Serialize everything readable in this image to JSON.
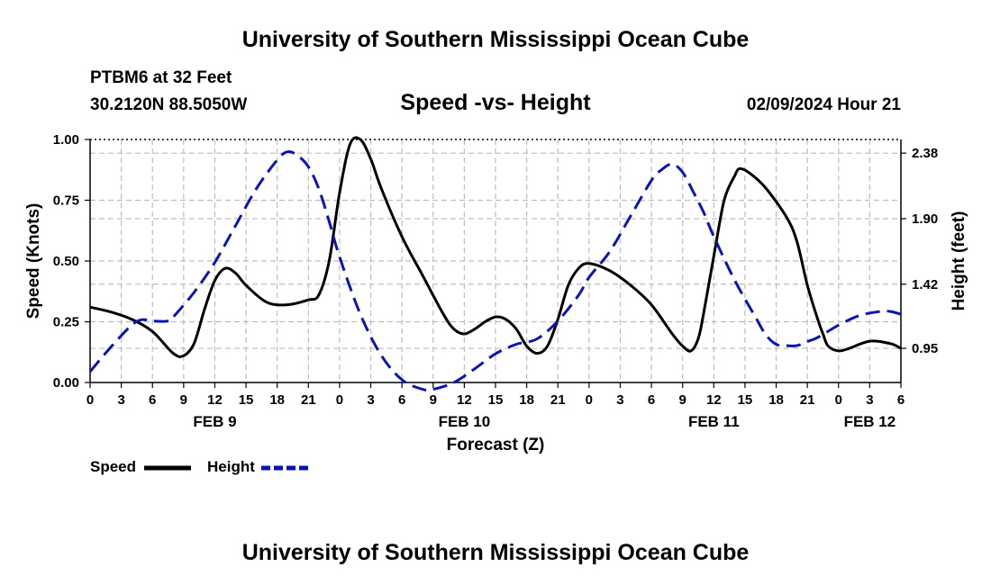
{
  "header": {
    "title": "University of Southern Mississippi Ocean Cube",
    "station": "PTBM6 at 32 Feet",
    "coords": "30.2120N  88.5050W",
    "subtitle": "Speed -vs- Height",
    "datetime": "02/09/2024 Hour 21"
  },
  "footer": {
    "title": "University of Southern Mississippi Ocean Cube"
  },
  "chart_data": {
    "type": "line",
    "xlabel": "Forecast (Z)",
    "ylabel_left": "Speed (Knots)",
    "ylabel_right": "Height (feet)",
    "x_range_hours": [
      0,
      78
    ],
    "x_ticks": [
      {
        "h": 0,
        "label": "0"
      },
      {
        "h": 3,
        "label": "3"
      },
      {
        "h": 6,
        "label": "6"
      },
      {
        "h": 9,
        "label": "9"
      },
      {
        "h": 12,
        "label": "12"
      },
      {
        "h": 15,
        "label": "15"
      },
      {
        "h": 18,
        "label": "18"
      },
      {
        "h": 21,
        "label": "21"
      },
      {
        "h": 24,
        "label": "0"
      },
      {
        "h": 27,
        "label": "3"
      },
      {
        "h": 30,
        "label": "6"
      },
      {
        "h": 33,
        "label": "9"
      },
      {
        "h": 36,
        "label": "12"
      },
      {
        "h": 39,
        "label": "15"
      },
      {
        "h": 42,
        "label": "18"
      },
      {
        "h": 45,
        "label": "21"
      },
      {
        "h": 48,
        "label": "0"
      },
      {
        "h": 51,
        "label": "3"
      },
      {
        "h": 54,
        "label": "6"
      },
      {
        "h": 57,
        "label": "9"
      },
      {
        "h": 60,
        "label": "12"
      },
      {
        "h": 63,
        "label": "15"
      },
      {
        "h": 66,
        "label": "18"
      },
      {
        "h": 69,
        "label": "21"
      },
      {
        "h": 72,
        "label": "0"
      },
      {
        "h": 75,
        "label": "3"
      },
      {
        "h": 78,
        "label": "6"
      }
    ],
    "date_labels": [
      {
        "h": 12,
        "label": "FEB 9"
      },
      {
        "h": 36,
        "label": "FEB 10"
      },
      {
        "h": 60,
        "label": "FEB 11"
      },
      {
        "h": 75,
        "label": "FEB 12"
      }
    ],
    "y_left": {
      "range": [
        0,
        1
      ],
      "ticks": [
        0.0,
        0.25,
        0.5,
        0.75,
        1.0
      ],
      "tick_labels": [
        "0.00",
        "0.25",
        "0.50",
        "0.75",
        "1.00"
      ]
    },
    "y_right": {
      "range": [
        0.7,
        2.48
      ],
      "ticks": [
        0.95,
        1.42,
        1.9,
        2.38
      ],
      "tick_labels": [
        "0.95",
        "1.42",
        "1.90",
        "2.38"
      ]
    },
    "series": [
      {
        "name": "Speed",
        "axis": "left",
        "color": "#000000",
        "style": "solid",
        "points": [
          [
            0,
            0.31
          ],
          [
            2,
            0.29
          ],
          [
            4,
            0.26
          ],
          [
            6,
            0.21
          ],
          [
            8,
            0.12
          ],
          [
            9,
            0.11
          ],
          [
            10,
            0.16
          ],
          [
            11,
            0.3
          ],
          [
            12,
            0.42
          ],
          [
            13,
            0.47
          ],
          [
            14,
            0.45
          ],
          [
            15,
            0.4
          ],
          [
            17,
            0.33
          ],
          [
            19,
            0.32
          ],
          [
            21,
            0.34
          ],
          [
            22,
            0.36
          ],
          [
            23,
            0.5
          ],
          [
            24,
            0.78
          ],
          [
            25,
            0.98
          ],
          [
            26,
            1.0
          ],
          [
            27,
            0.92
          ],
          [
            28,
            0.8
          ],
          [
            30,
            0.6
          ],
          [
            32,
            0.44
          ],
          [
            34,
            0.28
          ],
          [
            35,
            0.22
          ],
          [
            36,
            0.2
          ],
          [
            37,
            0.22
          ],
          [
            38,
            0.25
          ],
          [
            39,
            0.27
          ],
          [
            40,
            0.26
          ],
          [
            41,
            0.22
          ],
          [
            42,
            0.15
          ],
          [
            43,
            0.12
          ],
          [
            44,
            0.15
          ],
          [
            45,
            0.26
          ],
          [
            46,
            0.4
          ],
          [
            47,
            0.47
          ],
          [
            48,
            0.49
          ],
          [
            50,
            0.46
          ],
          [
            52,
            0.4
          ],
          [
            54,
            0.32
          ],
          [
            56,
            0.2
          ],
          [
            57,
            0.15
          ],
          [
            57.8,
            0.13
          ],
          [
            58.5,
            0.18
          ],
          [
            59,
            0.28
          ],
          [
            60,
            0.52
          ],
          [
            61,
            0.75
          ],
          [
            62,
            0.85
          ],
          [
            62.5,
            0.88
          ],
          [
            63.5,
            0.86
          ],
          [
            65,
            0.8
          ],
          [
            67,
            0.68
          ],
          [
            68,
            0.58
          ],
          [
            69,
            0.4
          ],
          [
            70,
            0.26
          ],
          [
            70.5,
            0.2
          ],
          [
            71,
            0.15
          ],
          [
            72,
            0.13
          ],
          [
            73,
            0.14
          ],
          [
            75,
            0.17
          ],
          [
            77,
            0.16
          ],
          [
            78,
            0.14
          ]
        ]
      },
      {
        "name": "Height",
        "axis": "right",
        "color": "#0a14b4",
        "style": "dashed",
        "points": [
          [
            0,
            0.78
          ],
          [
            2,
            0.96
          ],
          [
            4,
            1.12
          ],
          [
            5,
            1.16
          ],
          [
            6,
            1.15
          ],
          [
            7.5,
            1.15
          ],
          [
            8,
            1.18
          ],
          [
            10,
            1.36
          ],
          [
            12,
            1.58
          ],
          [
            14,
            1.85
          ],
          [
            16,
            2.12
          ],
          [
            18,
            2.33
          ],
          [
            19,
            2.39
          ],
          [
            20,
            2.36
          ],
          [
            21,
            2.28
          ],
          [
            22,
            2.12
          ],
          [
            23,
            1.88
          ],
          [
            24,
            1.62
          ],
          [
            26,
            1.2
          ],
          [
            28,
            0.9
          ],
          [
            30,
            0.72
          ],
          [
            32,
            0.65
          ],
          [
            33,
            0.65
          ],
          [
            35,
            0.7
          ],
          [
            37,
            0.8
          ],
          [
            39,
            0.91
          ],
          [
            41,
            0.98
          ],
          [
            43,
            1.02
          ],
          [
            45,
            1.15
          ],
          [
            47,
            1.34
          ],
          [
            48,
            1.47
          ],
          [
            50,
            1.66
          ],
          [
            52,
            1.92
          ],
          [
            54,
            2.18
          ],
          [
            55,
            2.26
          ],
          [
            56,
            2.3
          ],
          [
            57,
            2.24
          ],
          [
            58,
            2.1
          ],
          [
            59,
            1.95
          ],
          [
            60,
            1.77
          ],
          [
            62,
            1.45
          ],
          [
            64,
            1.18
          ],
          [
            65,
            1.05
          ],
          [
            66,
            0.98
          ],
          [
            67,
            0.97
          ],
          [
            68,
            0.97
          ],
          [
            69,
            1.0
          ],
          [
            70,
            1.03
          ],
          [
            72,
            1.12
          ],
          [
            74,
            1.19
          ],
          [
            76,
            1.22
          ],
          [
            77,
            1.22
          ],
          [
            78,
            1.2
          ]
        ]
      }
    ],
    "legend": [
      {
        "label": "Speed",
        "color": "#000000",
        "style": "solid"
      },
      {
        "label": "Height",
        "color": "#0a14b4",
        "style": "dashed"
      }
    ]
  }
}
